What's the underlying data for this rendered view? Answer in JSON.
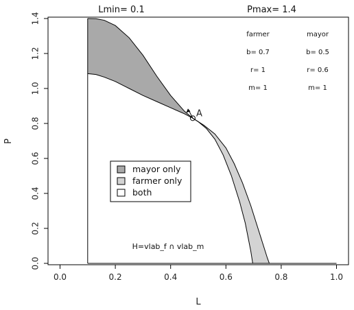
{
  "chart_data": {
    "type": "area",
    "xlabel": "L",
    "ylabel": "P",
    "xlim": [
      0.0,
      1.0
    ],
    "ylim": [
      0.0,
      1.4
    ],
    "x_ticks": [
      "0.0",
      "0.2",
      "0.4",
      "0.6",
      "0.8",
      "1.0"
    ],
    "y_ticks": [
      "0.0",
      "0.2",
      "0.4",
      "0.6",
      "0.8",
      "1.0",
      "1.2",
      "1.4"
    ],
    "x_tick_values": [
      0.0,
      0.2,
      0.4,
      0.6,
      0.8,
      1.0
    ],
    "y_tick_values": [
      0.0,
      0.2,
      0.4,
      0.6,
      0.8,
      1.0,
      1.2,
      1.4
    ],
    "header": {
      "lmin": "Lmin= 0.1",
      "pmax": "Pmax= 1.4"
    },
    "parameters": {
      "farmer": {
        "title": "farmer",
        "b": "b= 0.7",
        "r": "r= 1",
        "m": "m= 1"
      },
      "mayor": {
        "title": "mayor",
        "b": "b= 0.5",
        "r": "r= 0.6",
        "m": "m= 1"
      }
    },
    "legend": [
      {
        "label": "mayor  only",
        "color": "#a9a9a9"
      },
      {
        "label": "farmer  only",
        "color": "#d3d3d3"
      },
      {
        "label": "both",
        "color": "#ffffff"
      }
    ],
    "annotation": "H=vlab_f ∩ vlab_m",
    "point_label": "A",
    "point_A": [
      0.48,
      0.83
    ],
    "series": [
      {
        "x": [
          0.1,
          0.13,
          0.16,
          0.2,
          0.25,
          0.3,
          0.35,
          0.4,
          0.45,
          0.48,
          0.52,
          0.56,
          0.6,
          0.63,
          0.66,
          0.69,
          0.71,
          0.73,
          0.75,
          0.757
        ],
        "y": [
          1.4,
          1.399,
          1.39,
          1.36,
          1.29,
          1.19,
          1.07,
          0.96,
          0.87,
          0.83,
          0.79,
          0.74,
          0.66,
          0.57,
          0.46,
          0.33,
          0.23,
          0.13,
          0.03,
          0.0
        ]
      },
      {
        "x": [
          0.1,
          0.13,
          0.16,
          0.2,
          0.25,
          0.3,
          0.35,
          0.4,
          0.45,
          0.48,
          0.5,
          0.53,
          0.56,
          0.59,
          0.62,
          0.65,
          0.67,
          0.68,
          0.69,
          0.697
        ],
        "y": [
          1.085,
          1.08,
          1.065,
          1.04,
          1.0,
          0.96,
          0.925,
          0.89,
          0.855,
          0.83,
          0.81,
          0.77,
          0.71,
          0.62,
          0.5,
          0.35,
          0.23,
          0.15,
          0.07,
          0.0
        ]
      }
    ],
    "grid": false
  }
}
